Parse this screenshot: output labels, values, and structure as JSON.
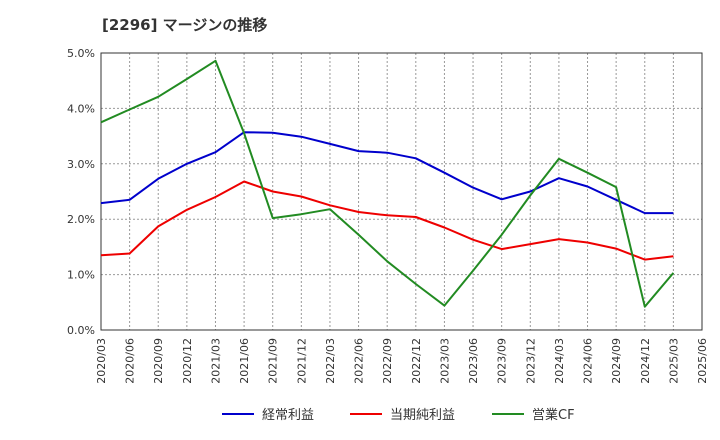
{
  "chart_data": {
    "type": "line",
    "title": "[2296]  マージンの推移",
    "xlabel": "",
    "ylabel": "",
    "ylim": [
      0,
      5
    ],
    "y_ticks": [
      "0.0%",
      "1.0%",
      "2.0%",
      "3.0%",
      "4.0%",
      "5.0%"
    ],
    "categories": [
      "2020/03",
      "2020/06",
      "2020/09",
      "2020/12",
      "2021/03",
      "2021/06",
      "2021/09",
      "2021/12",
      "2022/03",
      "2022/06",
      "2022/09",
      "2022/12",
      "2023/03",
      "2023/06",
      "2023/09",
      "2023/12",
      "2024/03",
      "2024/06",
      "2024/09",
      "2024/12",
      "2025/03",
      "2025/06"
    ],
    "grid": true,
    "legend_position": "bottom",
    "series": [
      {
        "name": "経常利益",
        "color": "#0000cc",
        "values": [
          2.29,
          2.35,
          2.73,
          3.0,
          3.21,
          3.57,
          3.56,
          3.49,
          3.36,
          3.23,
          3.2,
          3.1,
          2.84,
          2.57,
          2.36,
          2.5,
          2.74,
          2.59,
          2.35,
          2.11,
          2.11,
          null
        ]
      },
      {
        "name": "当期純利益",
        "color": "#ee0000",
        "values": [
          1.35,
          1.38,
          1.87,
          2.17,
          2.4,
          2.68,
          2.5,
          2.41,
          2.25,
          2.13,
          2.07,
          2.04,
          1.85,
          1.63,
          1.46,
          1.55,
          1.64,
          1.58,
          1.47,
          1.27,
          1.33,
          null
        ]
      },
      {
        "name": "営業CF",
        "color": "#228b22",
        "values": [
          3.75,
          3.98,
          4.21,
          4.53,
          4.86,
          3.55,
          2.02,
          2.09,
          2.18,
          1.72,
          1.24,
          0.83,
          0.44,
          1.07,
          1.72,
          2.43,
          3.09,
          2.84,
          2.58,
          0.42,
          1.03,
          null
        ]
      }
    ]
  }
}
